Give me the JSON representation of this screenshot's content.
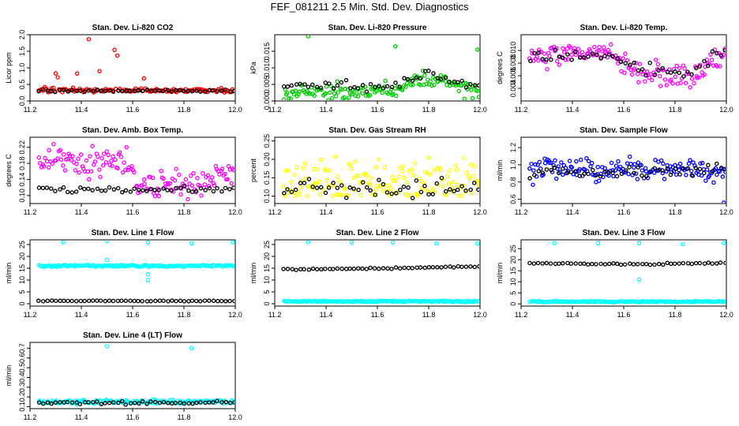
{
  "figure_title": "FEF_081211  2.5 Min. Std. Dev. Diagnostics",
  "colors": {
    "red": "#ff0000",
    "green": "#00cc00",
    "magenta": "#ff00ff",
    "yellow": "#ffff00",
    "blue": "#0000ff",
    "cyan": "#00ffff",
    "black": "#000000"
  },
  "chart_data": [
    {
      "id": "p1",
      "type": "scatter",
      "title": "Stan. Dev. Li-820 CO2",
      "ylabel": "Licor ppm",
      "xlim": [
        11.2,
        12.0
      ],
      "ylim": [
        0.0,
        2.0
      ],
      "xticks": [
        "11.2",
        "11.4",
        "11.6",
        "11.8",
        "12.0"
      ],
      "yticks": [
        "0.0",
        "0.5",
        "1.0",
        "1.5",
        "2.0"
      ],
      "series": [
        {
          "name": "primary",
          "color": "red",
          "base": 0.32,
          "noise": 0.06,
          "spike_prob": 0.18,
          "spike_max": 1.9,
          "spike_range": [
            11.25,
            11.66
          ]
        },
        {
          "name": "black",
          "color": "black",
          "base": 0.31,
          "noise": 0.04
        }
      ]
    },
    {
      "id": "p2",
      "type": "scatter",
      "title": "Stan. Dev. Li-820 Pressure",
      "ylabel": "kPa",
      "xlim": [
        11.2,
        12.0
      ],
      "ylim": [
        0.0,
        0.02
      ],
      "xticks": [
        "11.2",
        "11.4",
        "11.6",
        "11.8",
        "12.0"
      ],
      "yticks": [
        "0.000",
        "0.005",
        "0.010",
        "0.015"
      ],
      "series": [
        {
          "name": "primary",
          "color": "green",
          "profile": [
            [
              11.2,
              0.002
            ],
            [
              11.65,
              0.003
            ],
            [
              11.8,
              0.0075
            ],
            [
              12.0,
              0.002
            ]
          ],
          "noise": 0.0025,
          "outliers": [
            [
              11.33,
              0.0195
            ],
            [
              11.67,
              0.0165
            ],
            [
              11.99,
              0.0155
            ]
          ]
        },
        {
          "name": "black",
          "color": "black",
          "profile": [
            [
              11.2,
              0.0045
            ],
            [
              11.65,
              0.0045
            ],
            [
              11.8,
              0.0078
            ],
            [
              12.0,
              0.004
            ]
          ],
          "noise": 0.0018
        }
      ]
    },
    {
      "id": "p3",
      "type": "scatter",
      "title": "Stan. Dev. Li-820 Temp.",
      "ylabel": "degrees C",
      "xlim": [
        11.2,
        12.0
      ],
      "ylim": [
        0.002,
        0.0125
      ],
      "xticks": [
        "11.2",
        "11.4",
        "11.6",
        "11.8",
        "12.0"
      ],
      "yticks": [
        "0.004",
        "0.006",
        "0.008",
        "0.010"
      ],
      "series": [
        {
          "name": "primary",
          "color": "magenta",
          "profile": [
            [
              11.2,
              0.0092
            ],
            [
              11.55,
              0.0095
            ],
            [
              11.65,
              0.0065
            ],
            [
              11.85,
              0.0058
            ],
            [
              12.0,
              0.0095
            ]
          ],
          "noise": 0.0017
        },
        {
          "name": "black",
          "color": "black",
          "profile": [
            [
              11.2,
              0.009
            ],
            [
              11.55,
              0.0092
            ],
            [
              11.7,
              0.0065
            ],
            [
              11.85,
              0.006
            ],
            [
              12.0,
              0.0105
            ]
          ],
          "noise": 0.0012
        }
      ]
    },
    {
      "id": "p4",
      "type": "scatter",
      "title": "Stan. Dev. Amb. Box Temp.",
      "ylabel": "degrees C",
      "xlim": [
        11.2,
        12.0
      ],
      "ylim": [
        0.08,
        0.245
      ],
      "xticks": [
        "11.2",
        "11.4",
        "11.6",
        "11.8",
        "12.0"
      ],
      "yticks": [
        "0.10",
        "0.14",
        "0.18",
        "0.22"
      ],
      "series": [
        {
          "name": "primary",
          "color": "magenta",
          "profile": [
            [
              11.2,
              0.19
            ],
            [
              11.6,
              0.18
            ],
            [
              11.62,
              0.13
            ],
            [
              11.85,
              0.13
            ],
            [
              12.0,
              0.15
            ]
          ],
          "noise": 0.035
        },
        {
          "name": "black",
          "color": "black",
          "profile": [
            [
              11.2,
              0.115
            ],
            [
              12.0,
              0.115
            ]
          ],
          "noise": 0.008
        }
      ]
    },
    {
      "id": "p5",
      "type": "scatter",
      "title": "Stan. Dev. Gas Stream RH",
      "ylabel": "percent",
      "xlim": [
        11.2,
        12.0
      ],
      "ylim": [
        0.08,
        0.26
      ],
      "xticks": [
        "11.2",
        "11.4",
        "11.6",
        "11.8",
        "12.0"
      ],
      "yticks": [
        "0.10",
        "0.15",
        "0.20",
        "0.25"
      ],
      "series": [
        {
          "name": "primary",
          "color": "yellow",
          "profile": [
            [
              11.2,
              0.14
            ],
            [
              12.0,
              0.14
            ]
          ],
          "noise": 0.06,
          "floor": 0.1
        },
        {
          "name": "black",
          "color": "black",
          "profile": [
            [
              11.2,
              0.12
            ],
            [
              12.0,
              0.12
            ]
          ],
          "noise": 0.025
        }
      ]
    },
    {
      "id": "p6",
      "type": "scatter",
      "title": "Stan. Dev. Sample Flow",
      "ylabel": "ml/min",
      "xlim": [
        11.2,
        12.0
      ],
      "ylim": [
        0.55,
        1.32
      ],
      "xticks": [
        "11.2",
        "11.4",
        "11.6",
        "11.8",
        "12.0"
      ],
      "yticks": [
        "0.6",
        "0.8",
        "1.0",
        "1.2"
      ],
      "series": [
        {
          "name": "primary",
          "color": "blue",
          "profile": [
            [
              11.2,
              0.95
            ],
            [
              12.0,
              0.92
            ]
          ],
          "noise": 0.13,
          "outliers": [
            [
              11.99,
              0.56
            ]
          ]
        },
        {
          "name": "black",
          "color": "black",
          "profile": [
            [
              11.2,
              0.92
            ],
            [
              12.0,
              0.92
            ]
          ],
          "noise": 0.07
        }
      ]
    },
    {
      "id": "p7",
      "type": "scatter",
      "title": "Stan. Dev. Line 1 Flow",
      "ylabel": "ml/min",
      "xlim": [
        11.2,
        12.0
      ],
      "ylim": [
        -1,
        27
      ],
      "xticks": [
        "11.2",
        "11.4",
        "11.6",
        "11.8",
        "12.0"
      ],
      "yticks": [
        "0",
        "5",
        "10",
        "15",
        "20",
        "25"
      ],
      "series": [
        {
          "name": "primary",
          "color": "cyan",
          "profile": [
            [
              11.2,
              16
            ],
            [
              12.0,
              16
            ]
          ],
          "noise": 0.4,
          "outliers": [
            [
              11.33,
              26
            ],
            [
              11.5,
              26.5
            ],
            [
              11.5,
              18.5
            ],
            [
              11.66,
              26
            ],
            [
              11.66,
              10
            ],
            [
              11.66,
              12.5
            ],
            [
              11.83,
              25.5
            ],
            [
              11.99,
              26
            ]
          ]
        },
        {
          "name": "black",
          "color": "black",
          "profile": [
            [
              11.2,
              1.2
            ],
            [
              12.0,
              1.2
            ]
          ],
          "noise": 0.15
        }
      ]
    },
    {
      "id": "p8",
      "type": "scatter",
      "title": "Stan. Dev. Line 2 Flow",
      "ylabel": "ml/min",
      "xlim": [
        11.2,
        12.0
      ],
      "ylim": [
        -1,
        27
      ],
      "xticks": [
        "11.2",
        "11.4",
        "11.6",
        "11.8",
        "12.0"
      ],
      "yticks": [
        "0",
        "5",
        "10",
        "15",
        "20",
        "25"
      ],
      "series": [
        {
          "name": "primary",
          "color": "cyan",
          "profile": [
            [
              11.2,
              1
            ],
            [
              12.0,
              1
            ]
          ],
          "noise": 0.3,
          "outliers": [
            [
              11.33,
              26
            ],
            [
              11.5,
              26
            ],
            [
              11.66,
              26
            ],
            [
              11.83,
              25.5
            ],
            [
              11.99,
              25.5
            ]
          ]
        },
        {
          "name": "black",
          "color": "black",
          "profile": [
            [
              11.2,
              14.5
            ],
            [
              11.66,
              15
            ],
            [
              12.0,
              15.8
            ]
          ],
          "noise": 0.3
        }
      ]
    },
    {
      "id": "p9",
      "type": "scatter",
      "title": "Stan. Dev. Line 3 Flow",
      "ylabel": "ml/min",
      "xlim": [
        11.2,
        12.0
      ],
      "ylim": [
        -1,
        29
      ],
      "xticks": [
        "11.2",
        "11.4",
        "11.6",
        "11.8",
        "12.0"
      ],
      "yticks": [
        "0",
        "5",
        "10",
        "15",
        "20",
        "25"
      ],
      "series": [
        {
          "name": "primary",
          "color": "cyan",
          "profile": [
            [
              11.2,
              1
            ],
            [
              12.0,
              1
            ]
          ],
          "noise": 0.3,
          "outliers": [
            [
              11.33,
              27.5
            ],
            [
              11.5,
              27.5
            ],
            [
              11.66,
              27.5
            ],
            [
              11.66,
              11
            ],
            [
              11.83,
              27
            ],
            [
              11.99,
              27.5
            ]
          ]
        },
        {
          "name": "black",
          "color": "black",
          "profile": [
            [
              11.2,
              18.5
            ],
            [
              11.66,
              18
            ],
            [
              12.0,
              18.5
            ]
          ],
          "noise": 0.35
        }
      ]
    },
    {
      "id": "p10",
      "type": "scatter",
      "title": "Stan. Dev. Line 4 (LT) Flow",
      "ylabel": "ml/min",
      "xlim": [
        11.2,
        12.0
      ],
      "ylim": [
        0.08,
        0.76
      ],
      "xticks": [
        "11.2",
        "11.4",
        "11.6",
        "11.8",
        "12.0"
      ],
      "yticks": [
        "0.1",
        "0.2",
        "0.3",
        "0.4",
        "0.5",
        "0.6",
        "0.7"
      ],
      "series": [
        {
          "name": "primary",
          "color": "cyan",
          "profile": [
            [
              11.2,
              0.15
            ],
            [
              12.0,
              0.15
            ]
          ],
          "noise": 0.02,
          "outliers": [
            [
              11.5,
              0.72
            ],
            [
              11.83,
              0.7
            ]
          ]
        },
        {
          "name": "black",
          "color": "black",
          "profile": [
            [
              11.2,
              0.14
            ],
            [
              12.0,
              0.14
            ]
          ],
          "noise": 0.015
        }
      ]
    }
  ]
}
